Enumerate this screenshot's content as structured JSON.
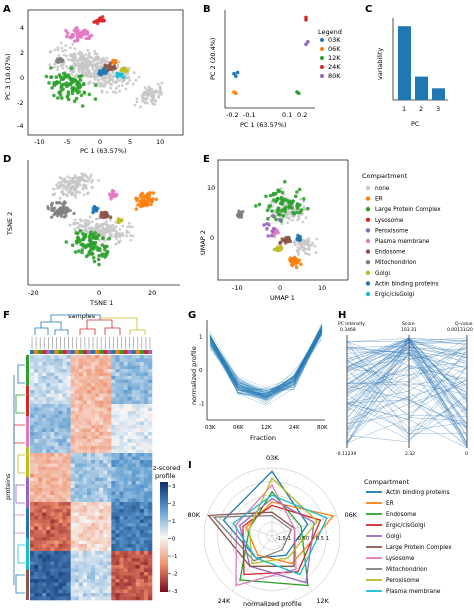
{
  "panel_labels": {
    "A": "A",
    "B": "B",
    "C": "C",
    "D": "D",
    "E": "E",
    "F": "F",
    "G": "G",
    "H": "H",
    "I": "I"
  },
  "colors": {
    "03K": "#1f77b4",
    "06K": "#ff7f0e",
    "12K": "#2ca02c",
    "24K": "#d62728",
    "80K": "#9467bd",
    "none": "#c8c8c8",
    "ER": "#ff7f0e",
    "Large Protein Complex": "#2ca02c",
    "Lysosome": "#d62728",
    "Peroxisome": "#9467bd",
    "Plasma membrane": "#e377c2",
    "Endosome": "#8c564b",
    "Mitochondrion": "#7f7f7f",
    "Golgi": "#bcbd22",
    "Actin binding proteins": "#1f77b4",
    "Ergic/cisGolgi": "#17becf"
  },
  "panelA": {
    "xlabel": "PC 1 (63.57%)",
    "ylabel": "PC 3 (10.07%)",
    "xticks": [
      "-10",
      "-5",
      "0",
      "5",
      "10"
    ],
    "yticks": [
      "4",
      "2",
      "0",
      "-2",
      "-4"
    ]
  },
  "panelB": {
    "xlabel": "PC 1 (63.57%)",
    "ylabel": "PC 2 (20.4%)",
    "xticks": [
      "-0.2",
      "-0.1",
      "0.1",
      "0.2"
    ],
    "legend_title": "Legend",
    "legend": [
      "03K",
      "06K",
      "12K",
      "24K",
      "80K"
    ]
  },
  "panelC": {
    "xlabel": "PC",
    "ylabel": "variability"
  },
  "panelD": {
    "xlabel": "TSNE 1",
    "ylabel": "TSNE 2",
    "xticks": [
      "-20",
      "0",
      "20"
    ]
  },
  "panelE": {
    "xlabel": "UMAP 1",
    "ylabel": "UMAP 2",
    "xticks": [
      "-10",
      "0",
      "10"
    ],
    "yticks": [
      "10",
      "0"
    ]
  },
  "compartments": {
    "title": "Compartment",
    "items": [
      "none",
      "ER",
      "Large Protein Complex",
      "Lysosome",
      "Peroxisome",
      "Plasma membrane",
      "Endosome",
      "Mitochondrion",
      "Golgi",
      "Actin binding proteins",
      "Ergic/cisGolgi"
    ]
  },
  "panelF": {
    "samples_label": "samples",
    "proteins_label": "proteins",
    "cbar_label": "z-scored\nprofile",
    "cbar_title_1": "z-scored",
    "cbar_title_2": "profile",
    "cbar_ticks": [
      "3",
      "2",
      "1",
      "0",
      "-1",
      "-2",
      "-3"
    ]
  },
  "panelG": {
    "xlabel": "Fraction",
    "ylabel": "normalized profile",
    "xticks": [
      "03K",
      "06K",
      "12K",
      "24K",
      "80K"
    ],
    "yticks": [
      "1",
      "0",
      "-1"
    ]
  },
  "panelH": {
    "axes_titles": [
      "PC Intensity",
      "Score",
      "Q-value"
    ],
    "top_values": [
      "0.3468",
      "103.31",
      "0.00131/20"
    ],
    "bottom_values": [
      "-0.11239",
      "2.32",
      "0"
    ]
  },
  "panelI": {
    "xlabel": "normalized profile",
    "spokes": [
      "03K",
      "06K",
      "12K",
      "24K",
      "80K"
    ],
    "rings": [
      "-1.5",
      "-1",
      "-0.5",
      "0",
      "0.5",
      "1"
    ],
    "legend_title": "Compartment",
    "legend": [
      "Actin binding proteins",
      "ER",
      "Endosome",
      "Ergic/cisGolgi",
      "Golgi",
      "Large Protein Complex",
      "Lysosome",
      "Mitochondrion",
      "Peroxisome",
      "Plasma membrane"
    ]
  },
  "chart_data": [
    {
      "type": "scatter",
      "panel": "A",
      "xlabel": "PC 1 (63.57%)",
      "ylabel": "PC 3 (10.07%)",
      "xlim": [
        -11,
        12
      ],
      "ylim": [
        -5,
        5
      ],
      "series": [
        {
          "name": "none",
          "x": [
            -8,
            -6,
            -4,
            -2,
            0,
            2,
            4,
            6,
            8,
            10
          ],
          "y": [
            2,
            1,
            0,
            -1,
            -2,
            -1,
            0,
            -1,
            -2,
            -1
          ]
        },
        {
          "name": "Large Protein Complex",
          "x": [
            -6,
            -4,
            -3,
            -1,
            1,
            3
          ],
          "y": [
            -1,
            0,
            1,
            0,
            -2,
            -3
          ]
        },
        {
          "name": "Plasma membrane",
          "x": [
            -3,
            -1,
            0,
            2
          ],
          "y": [
            3,
            3,
            2,
            3
          ]
        },
        {
          "name": "Lysosome",
          "x": [
            2,
            3
          ],
          "y": [
            4,
            4
          ]
        }
      ]
    },
    {
      "type": "scatter",
      "panel": "B",
      "xlabel": "PC 1 (63.57%)",
      "ylabel": "PC 2 (20.4%)",
      "xlim": [
        -0.25,
        0.25
      ],
      "ylim": [
        -0.4,
        0.4
      ],
      "series": [
        {
          "name": "03K",
          "x": [
            -0.2,
            -0.19,
            -0.18
          ],
          "y": [
            -0.12,
            -0.14,
            -0.11
          ]
        },
        {
          "name": "06K",
          "x": [
            -0.2,
            -0.19
          ],
          "y": [
            -0.27,
            -0.28
          ]
        },
        {
          "name": "12K",
          "x": [
            0.15,
            0.16
          ],
          "y": [
            -0.27,
            -0.28
          ]
        },
        {
          "name": "24K",
          "x": [
            0.2,
            0.2
          ],
          "y": [
            0.34,
            0.32
          ]
        },
        {
          "name": "80K",
          "x": [
            0.2,
            0.21
          ],
          "y": [
            0.12,
            0.14
          ]
        }
      ]
    },
    {
      "type": "bar",
      "panel": "C",
      "xlabel": "PC",
      "ylabel": "variability",
      "categories": [
        "1",
        "2",
        "3"
      ],
      "values": [
        0.63,
        0.2,
        0.1
      ],
      "ylim": [
        0,
        0.7
      ]
    },
    {
      "type": "line",
      "panel": "G",
      "xlabel": "Fraction",
      "ylabel": "normalized profile",
      "categories": [
        "03K",
        "06K",
        "12K",
        "24K",
        "80K"
      ],
      "values": [
        0.9,
        -0.5,
        -0.8,
        -0.3,
        1.2
      ],
      "ylim": [
        -1.5,
        1.5
      ]
    },
    {
      "type": "heatmap",
      "panel": "F",
      "cbar_range": [
        -3,
        3
      ]
    }
  ]
}
